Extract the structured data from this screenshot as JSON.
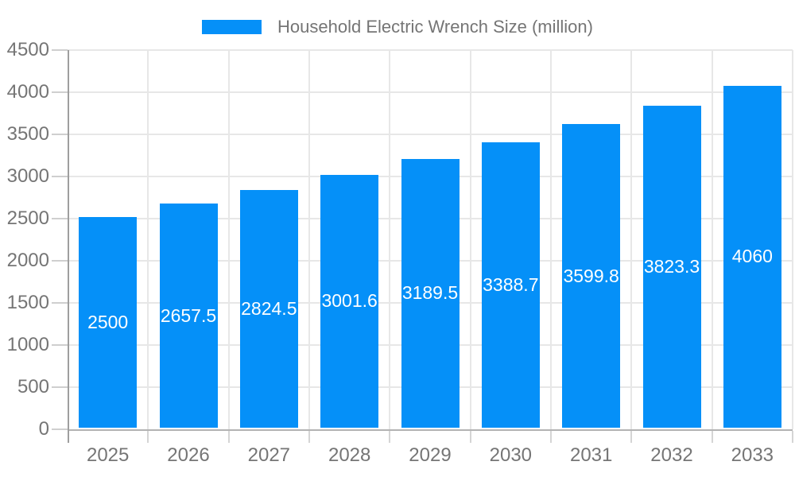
{
  "legend": {
    "label": "Household Electric Wrench Size (million)"
  },
  "colors": {
    "bar": "#0590f8",
    "grid": "#e7e7e7",
    "y_axis": "#9e9e9e",
    "x_axis": "#b3b3b3",
    "tick": "#d5d5d5",
    "axis_text": "#757575",
    "value_text": "#ffffff",
    "background": "#ffffff"
  },
  "chart_data": {
    "type": "bar",
    "title": "Household Electric Wrench Size (million)",
    "categories": [
      "2025",
      "2026",
      "2027",
      "2028",
      "2029",
      "2030",
      "2031",
      "2032",
      "2033"
    ],
    "values": [
      2500,
      2657.5,
      2824.5,
      3001.6,
      3189.5,
      3388.7,
      3599.8,
      3823.3,
      4060
    ],
    "value_labels": [
      "2500",
      "2657.5",
      "2824.5",
      "3001.6",
      "3189.5",
      "3388.7",
      "3599.8",
      "3823.3",
      "4060"
    ],
    "xlabel": "",
    "ylabel": "",
    "ylim": [
      0,
      4500
    ],
    "ytick_step": 500,
    "ytick_labels": [
      "0",
      "500",
      "1000",
      "1500",
      "2000",
      "2500",
      "3000",
      "3500",
      "4000",
      "4500"
    ],
    "grid": true,
    "legend_position": "top",
    "value_label_position": "inside-center"
  }
}
